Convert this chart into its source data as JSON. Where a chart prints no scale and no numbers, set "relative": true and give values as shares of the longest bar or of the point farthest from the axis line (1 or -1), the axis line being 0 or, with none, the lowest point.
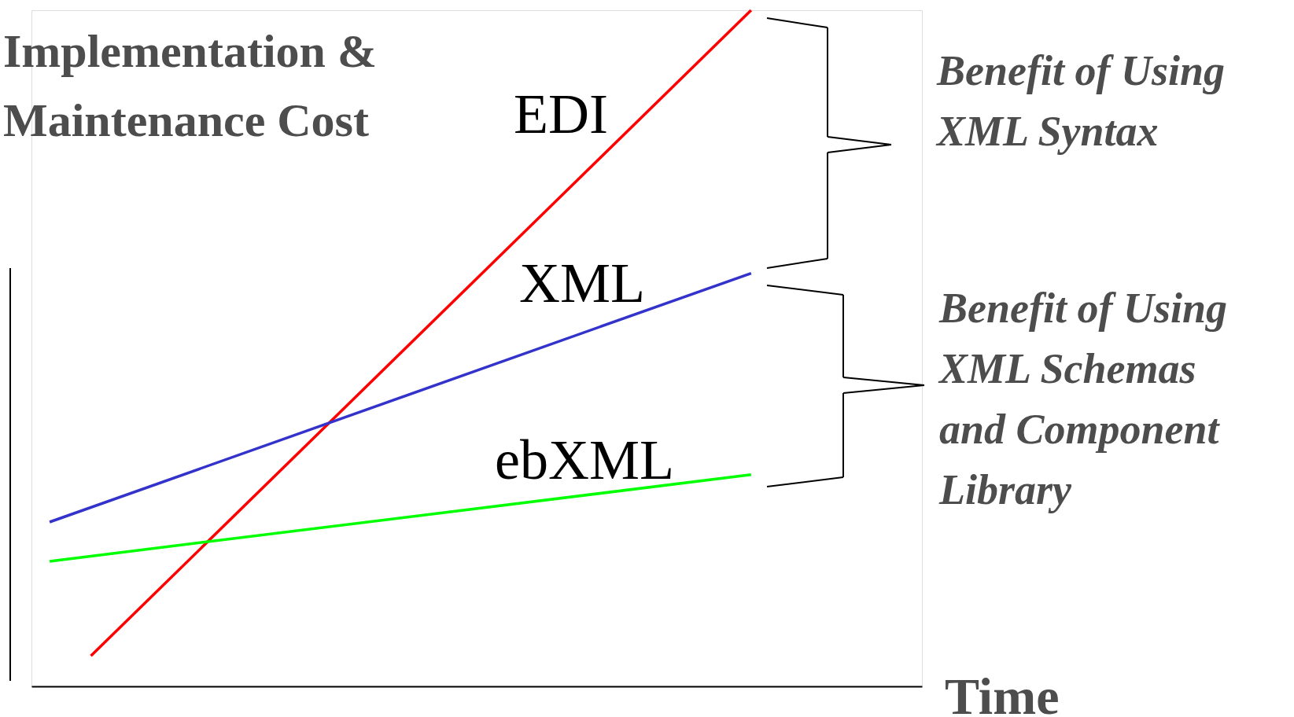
{
  "chart_data": {
    "type": "line",
    "relative": true,
    "ylabel": "Implementation &\nMaintenance Cost",
    "xlabel": "Time",
    "categories": [
      null,
      null,
      null,
      null,
      null,
      null,
      null,
      null,
      null,
      null,
      null,
      null,
      null,
      null,
      null,
      null,
      null,
      null
    ],
    "series": [
      {
        "name": "EDI",
        "color": "#ff0000",
        "values": [
          null,
          0.045,
          null,
          null,
          null,
          null,
          null,
          null,
          null,
          null,
          null,
          null,
          null,
          null,
          null,
          null,
          null,
          1
        ]
      },
      {
        "name": "XML",
        "color": "#3333cc",
        "values": [
          0.243,
          null,
          null,
          null,
          null,
          null,
          null,
          null,
          null,
          null,
          null,
          null,
          null,
          null,
          null,
          null,
          null,
          0.611
        ]
      },
      {
        "name": "ebXML",
        "color": "#00ff00",
        "values": [
          0.185,
          null,
          null,
          null,
          null,
          null,
          null,
          null,
          null,
          null,
          null,
          null,
          null,
          null,
          null,
          null,
          null,
          0.313
        ]
      }
    ],
    "annotations": [
      "Benefit of Using\nXML Syntax",
      "Benefit of Using\nXML Schemas\nand Component\nLibrary"
    ]
  }
}
